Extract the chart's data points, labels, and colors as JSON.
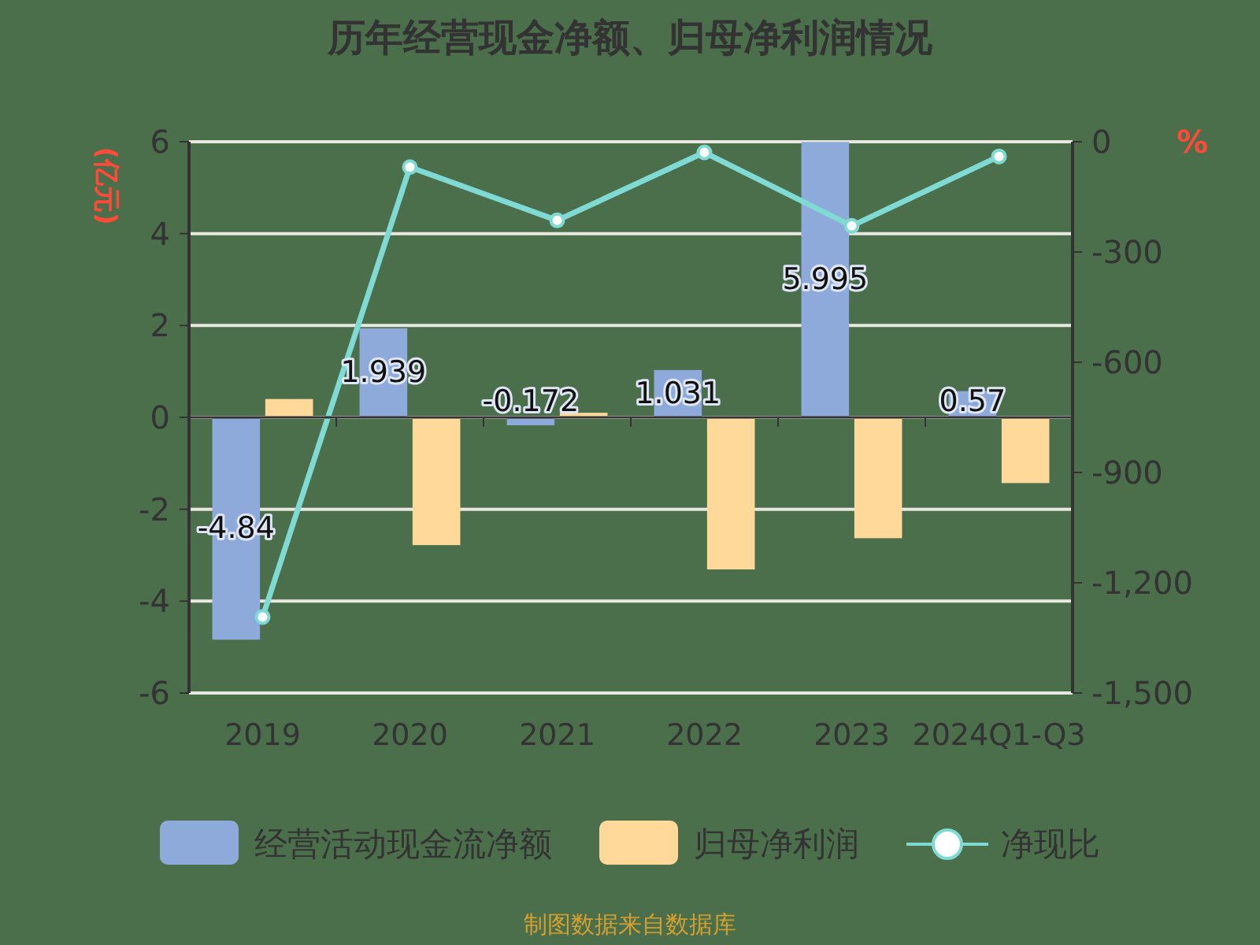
{
  "chart_data": {
    "type": "bar",
    "title": "历年经营现金净额、归母净利润情况",
    "ylabel": "(亿元)",
    "y2label": "%",
    "categories": [
      "2019",
      "2020",
      "2021",
      "2022",
      "2023",
      "2024Q1-Q3"
    ],
    "series": [
      {
        "name": "经营活动现金流净额",
        "color": "#8eaadb",
        "values": [
          -4.84,
          1.939,
          -0.172,
          1.031,
          5.995,
          0.57
        ],
        "value_labels": [
          "-4.84",
          "1.939",
          "-0.172",
          "1.031",
          "5.995",
          "0.57"
        ]
      },
      {
        "name": "归母净利润",
        "color": "#ffd99a",
        "values": [
          0.4,
          -2.78,
          0.1,
          -3.31,
          -2.63,
          -1.43
        ]
      },
      {
        "name": "净现比",
        "type": "line",
        "axis": "y2",
        "color": "#7fdad3",
        "marker": "circle",
        "values": [
          -1293,
          -69,
          -214,
          -29,
          -229,
          -40
        ]
      }
    ],
    "ylim": [
      -6,
      6
    ],
    "yticks": [
      -6,
      -4,
      -2,
      0,
      2,
      4,
      6
    ],
    "y2lim": [
      -1500,
      0
    ],
    "y2ticks": [
      {
        "value": -1500,
        "label": "-1,500"
      },
      {
        "value": -1200,
        "label": "-1,200"
      },
      -900,
      -600,
      -300,
      0
    ],
    "grid": "y",
    "legend": "bottom",
    "annotations": [
      "制图数据来自数据库"
    ]
  }
}
